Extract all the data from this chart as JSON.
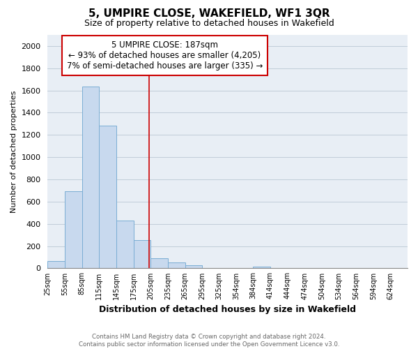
{
  "title": "5, UMPIRE CLOSE, WAKEFIELD, WF1 3QR",
  "subtitle": "Size of property relative to detached houses in Wakefield",
  "xlabel": "Distribution of detached houses by size in Wakefield",
  "ylabel": "Number of detached properties",
  "bar_color": "#c8d9ee",
  "bar_edge_color": "#7aadd4",
  "plot_bg_color": "#e8eef5",
  "bin_edges": [
    10,
    40,
    70,
    100,
    130,
    160,
    190,
    220,
    250,
    280,
    310,
    340,
    369,
    399,
    429,
    459,
    489,
    519,
    549,
    579,
    609,
    639
  ],
  "bin_labels": [
    "25sqm",
    "55sqm",
    "85sqm",
    "115sqm",
    "145sqm",
    "175sqm",
    "205sqm",
    "235sqm",
    "265sqm",
    "295sqm",
    "325sqm",
    "354sqm",
    "384sqm",
    "414sqm",
    "444sqm",
    "474sqm",
    "504sqm",
    "534sqm",
    "564sqm",
    "594sqm",
    "624sqm"
  ],
  "bar_heights": [
    68,
    693,
    1634,
    1283,
    432,
    252,
    88,
    52,
    30,
    0,
    0,
    0,
    15,
    0,
    0,
    0,
    0,
    0,
    0,
    0,
    0
  ],
  "ylim": [
    0,
    2100
  ],
  "yticks": [
    0,
    200,
    400,
    600,
    800,
    1000,
    1200,
    1400,
    1600,
    1800,
    2000
  ],
  "vline_x": 187,
  "vline_color": "#cc0000",
  "annotation_line1": "5 UMPIRE CLOSE: 187sqm",
  "annotation_line2": "← 93% of detached houses are smaller (4,205)",
  "annotation_line3": "7% of semi-detached houses are larger (335) →",
  "footer_line1": "Contains HM Land Registry data © Crown copyright and database right 2024.",
  "footer_line2": "Contains public sector information licensed under the Open Government Licence v3.0.",
  "background_color": "#ffffff",
  "grid_color": "#c0ccd8"
}
